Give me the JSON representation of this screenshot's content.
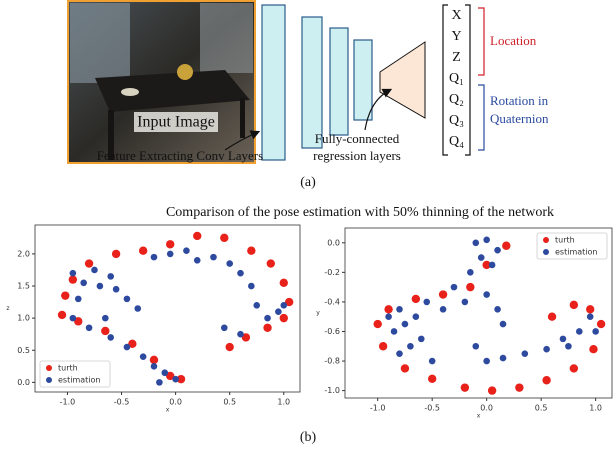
{
  "diagram": {
    "input_label": "Input Image",
    "conv_label": "Feature Extracting Conv Layers",
    "fc_label": [
      "Fully-connected",
      "regression layers"
    ],
    "outputs": [
      "X",
      "Y",
      "Z",
      "Q₁",
      "Q₂",
      "Q₃",
      "Q₄"
    ],
    "location_label": "Location",
    "rotation_label": [
      "Rotation in",
      "Quaternion"
    ],
    "caption": "(a)"
  },
  "figure_b_title": "Comparison of the pose estimation with 50% thinning of the network",
  "caption_b": "(b)",
  "chart_data": [
    {
      "type": "scatter",
      "xlabel": "x",
      "ylabel": "z",
      "xlim": [
        -1.3,
        1.15
      ],
      "ylim": [
        -0.15,
        2.45
      ],
      "xticks": [
        {
          "value": -1,
          "label": "-1.0"
        },
        {
          "value": -0.5,
          "label": "-0.5"
        },
        {
          "value": 0,
          "label": "0.0"
        },
        {
          "value": 0.5,
          "label": "0.5"
        },
        {
          "value": 1,
          "label": "1.0"
        }
      ],
      "yticks": [
        {
          "value": 0,
          "label": "0.0"
        },
        0.5,
        {
          "value": 1,
          "label": "1.0"
        },
        1.5,
        {
          "value": 2,
          "label": "2.0"
        }
      ],
      "legend": "lower left",
      "series": [
        {
          "name": "turth",
          "color": "#e8221b",
          "x": [
            -1.05,
            -1.02,
            -0.95,
            -0.8,
            -0.55,
            -0.3,
            -0.05,
            0.2,
            0.45,
            0.7,
            0.88,
            1.0,
            1.05,
            1.0,
            0.85,
            0.65,
            0.5,
            -0.05,
            0.05,
            -0.2,
            -0.4,
            -0.65,
            -0.9
          ],
          "values": [
            1.05,
            1.35,
            1.6,
            1.85,
            2.0,
            2.05,
            2.15,
            2.28,
            2.25,
            2.05,
            1.85,
            1.55,
            1.25,
            1.0,
            0.85,
            0.7,
            0.55,
            0.1,
            0.05,
            0.35,
            0.6,
            0.8,
            0.95
          ]
        },
        {
          "name": "estimation",
          "color": "#2e4a9e",
          "x": [
            -0.95,
            -0.85,
            -0.75,
            -0.7,
            -0.6,
            -0.9,
            -0.55,
            -0.2,
            -0.05,
            0.1,
            0.2,
            0.35,
            0.5,
            0.6,
            0.7,
            0.75,
            0.85,
            0.95,
            1.0,
            0.6,
            0.45,
            -0.95,
            -0.8,
            -0.6,
            -0.45,
            -0.3,
            -0.2,
            -0.1,
            0.0,
            -0.15,
            -0.45,
            -0.35,
            -0.65
          ],
          "values": [
            1.7,
            1.55,
            1.75,
            1.5,
            1.65,
            1.3,
            1.45,
            1.95,
            2.0,
            2.05,
            1.9,
            1.95,
            1.85,
            1.7,
            1.5,
            1.2,
            1.0,
            1.1,
            1.2,
            0.75,
            0.85,
            1.0,
            0.85,
            0.7,
            0.55,
            0.4,
            0.25,
            0.15,
            0.05,
            0.0,
            1.3,
            1.15,
            1.0
          ]
        }
      ]
    },
    {
      "type": "scatter",
      "xlabel": "x",
      "ylabel": "y",
      "xlim": [
        -1.3,
        1.15
      ],
      "ylim": [
        -1.05,
        0.1
      ],
      "xticks": [
        {
          "value": -1,
          "label": "-1.0"
        },
        {
          "value": -0.5,
          "label": "-0.5"
        },
        {
          "value": 0,
          "label": "0.0"
        },
        {
          "value": 0.5,
          "label": "0.5"
        },
        {
          "value": 1,
          "label": "1.0"
        }
      ],
      "yticks": [
        {
          "value": -1,
          "label": "-1.0"
        },
        -0.8,
        -0.6,
        -0.4,
        -0.2,
        {
          "value": 0,
          "label": "0.0"
        }
      ],
      "legend": "upper right",
      "series": [
        {
          "name": "turth",
          "color": "#e8221b",
          "x": [
            0.18,
            0.0,
            -0.15,
            -0.4,
            -0.65,
            -0.9,
            -1.0,
            -0.95,
            -0.75,
            -0.5,
            -0.2,
            0.05,
            0.3,
            0.55,
            0.8,
            0.98,
            1.05,
            0.95,
            0.8,
            0.6
          ],
          "values": [
            -0.02,
            -0.15,
            -0.3,
            -0.35,
            -0.38,
            -0.45,
            -0.55,
            -0.7,
            -0.85,
            -0.92,
            -0.98,
            -1.0,
            -0.98,
            -0.93,
            -0.85,
            -0.72,
            -0.55,
            -0.45,
            -0.42,
            -0.5
          ]
        },
        {
          "name": "estimation",
          "color": "#2e4a9e",
          "x": [
            -0.1,
            0.0,
            0.1,
            0.05,
            -0.05,
            -0.15,
            -0.3,
            -0.55,
            -0.8,
            -0.9,
            -0.85,
            -0.75,
            -0.7,
            -0.8,
            -0.6,
            -0.65,
            -0.4,
            -0.2,
            0.0,
            0.1,
            0.15,
            -0.1,
            0.0,
            0.15,
            0.35,
            0.55,
            0.7,
            0.85,
            1.0,
            0.95,
            0.75,
            -0.5
          ],
          "values": [
            0.0,
            0.02,
            -0.05,
            -0.15,
            -0.1,
            -0.2,
            -0.3,
            -0.4,
            -0.45,
            -0.5,
            -0.6,
            -0.55,
            -0.7,
            -0.75,
            -0.65,
            -0.5,
            -0.45,
            -0.4,
            -0.35,
            -0.45,
            -0.55,
            -0.7,
            -0.8,
            -0.78,
            -0.75,
            -0.72,
            -0.65,
            -0.6,
            -0.6,
            -0.5,
            -0.7,
            -0.8
          ]
        }
      ]
    }
  ]
}
